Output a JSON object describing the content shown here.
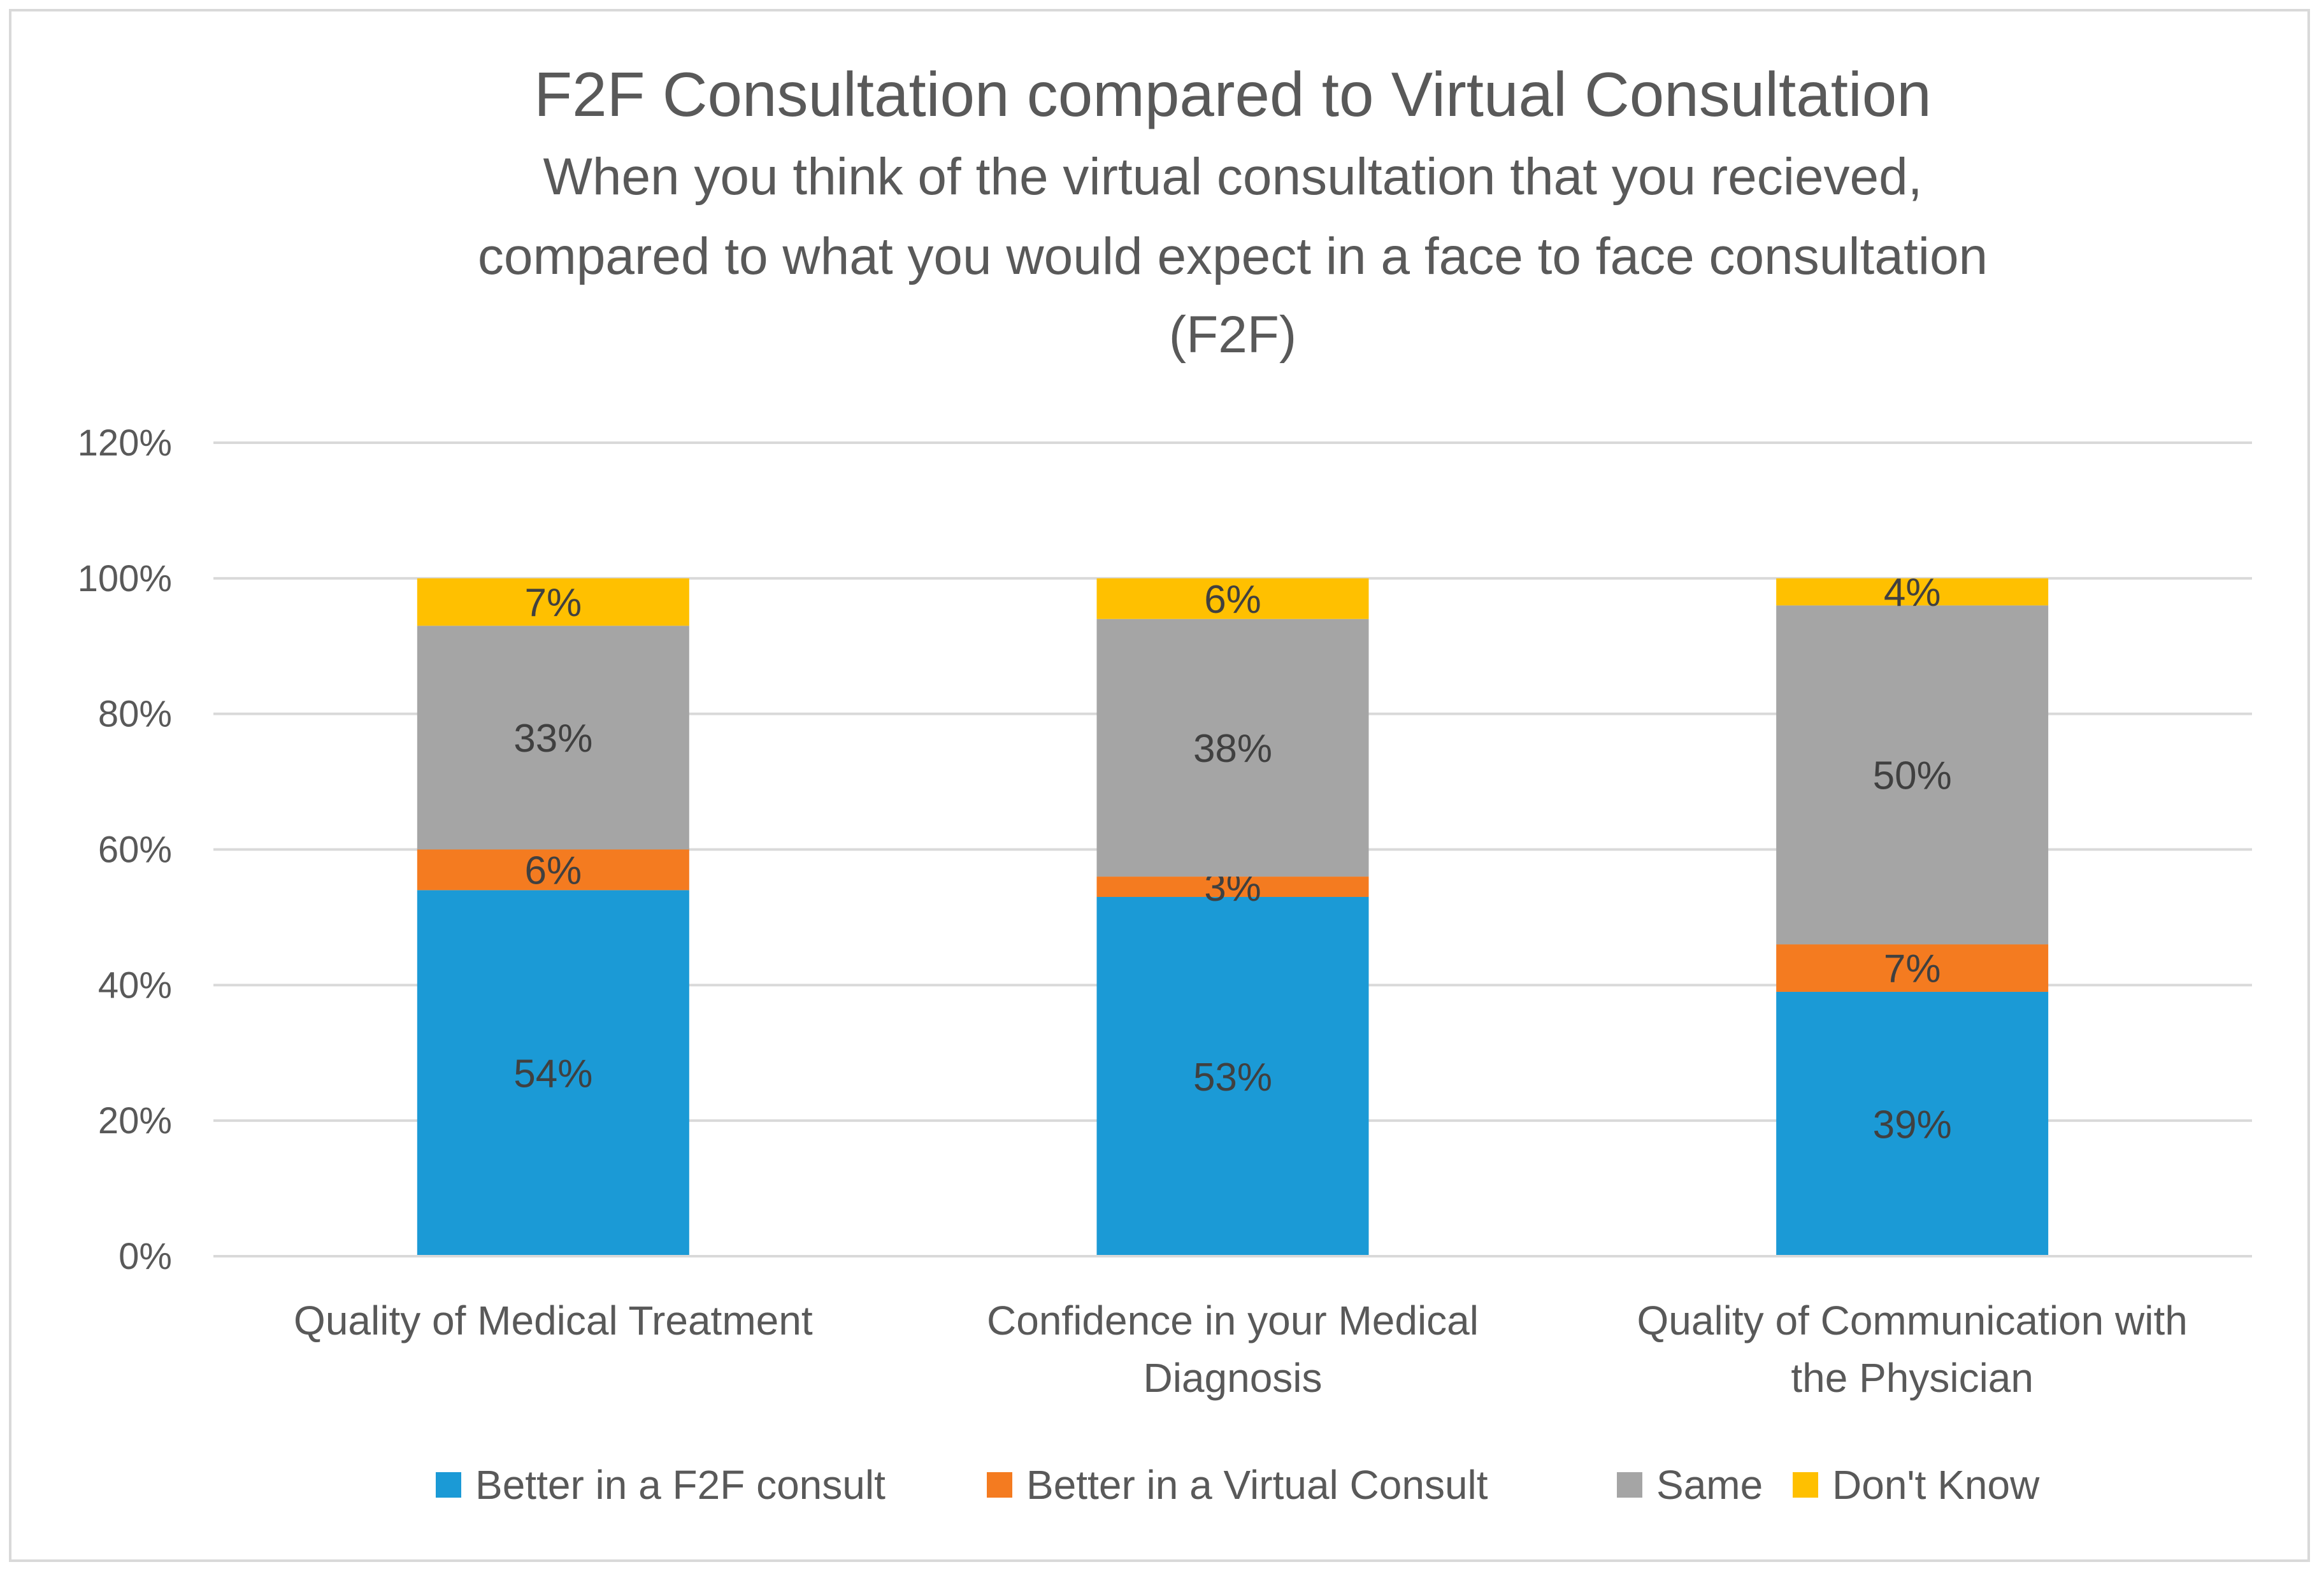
{
  "chart_data": {
    "type": "bar",
    "stacked": true,
    "title": "F2F Consultation compared to Virtual Consultation",
    "subtitle_lines": [
      "When you think of the virtual consultation that you recieved,",
      "compared to what you would expect in a face to face consultation",
      "(F2F)"
    ],
    "categories": [
      [
        "Quality of Medical Treatment"
      ],
      [
        "Confidence in your Medical",
        "Diagnosis"
      ],
      [
        "Quality of Communication with",
        "the Physician"
      ]
    ],
    "series": [
      {
        "name": "Better in a F2F consult",
        "color": "#1b9ad6",
        "values": [
          54,
          53,
          39
        ],
        "labels": [
          "54%",
          "53%",
          "39%"
        ]
      },
      {
        "name": "Better in a Virtual Consult",
        "color": "#f47b20",
        "values": [
          6,
          3,
          7
        ],
        "labels": [
          "6%",
          "3%",
          "7%"
        ]
      },
      {
        "name": "Same",
        "color": "#a5a5a5",
        "values": [
          33,
          38,
          50
        ],
        "labels": [
          "33%",
          "38%",
          "50%"
        ]
      },
      {
        "name": "Don't Know",
        "color": "#ffc000",
        "values": [
          7,
          6,
          4
        ],
        "labels": [
          "7%",
          "6%",
          "4%"
        ]
      }
    ],
    "ylim": [
      0,
      120
    ],
    "yticks": [
      0,
      20,
      40,
      60,
      80,
      100,
      120
    ],
    "ytick_labels": [
      "0%",
      "20%",
      "40%",
      "60%",
      "80%",
      "100%",
      "120%"
    ],
    "gridlines": true,
    "legend_position": "bottom",
    "xlabel": "",
    "ylabel": ""
  }
}
